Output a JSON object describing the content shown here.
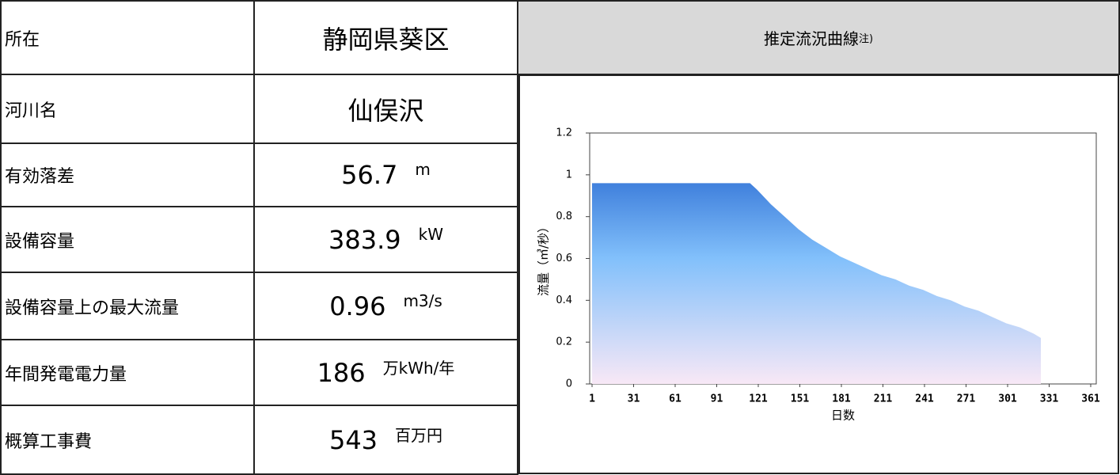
{
  "table": {
    "rows": [
      {
        "label": "所在",
        "value": "静岡県葵区"
      },
      {
        "label": "河川名",
        "value": "仙俣沢"
      },
      {
        "label": "有効落差",
        "value": 56.7,
        "unit": "m"
      },
      {
        "label": "設備容量",
        "value": 383.9,
        "unit": "kW"
      },
      {
        "label": "設備容量上の最大流量",
        "value": 0.96,
        "unit": "m3/s"
      },
      {
        "label": "年間発電電力量",
        "value": 186,
        "unit": "万kWh/年"
      },
      {
        "label": "概算工事費",
        "value": 543,
        "unit": "百万円"
      }
    ]
  },
  "chart_data": {
    "type": "area",
    "title": "推定流況曲線",
    "title_note": "注)",
    "x": [
      1,
      115,
      120,
      130,
      140,
      150,
      160,
      170,
      180,
      190,
      200,
      210,
      220,
      230,
      240,
      250,
      260,
      270,
      280,
      290,
      300,
      310,
      320,
      325
    ],
    "values": [
      0.96,
      0.96,
      0.93,
      0.86,
      0.8,
      0.74,
      0.69,
      0.65,
      0.61,
      0.58,
      0.55,
      0.52,
      0.5,
      0.47,
      0.45,
      0.42,
      0.4,
      0.37,
      0.35,
      0.32,
      0.29,
      0.27,
      0.24,
      0.22
    ],
    "xlim": [
      1,
      361
    ],
    "xticks": [
      1,
      31,
      61,
      91,
      121,
      151,
      181,
      211,
      241,
      271,
      301,
      331,
      361
    ],
    "ylim": [
      0,
      1.2
    ],
    "yticks": [
      0,
      0.2,
      0.4,
      0.6,
      0.8,
      1,
      1.2
    ],
    "xlabel": "日数",
    "ylabel": "流量（㎥/秒）",
    "colors": [
      "#1456c8",
      "#82c0fb",
      "#f8e8f6"
    ]
  }
}
